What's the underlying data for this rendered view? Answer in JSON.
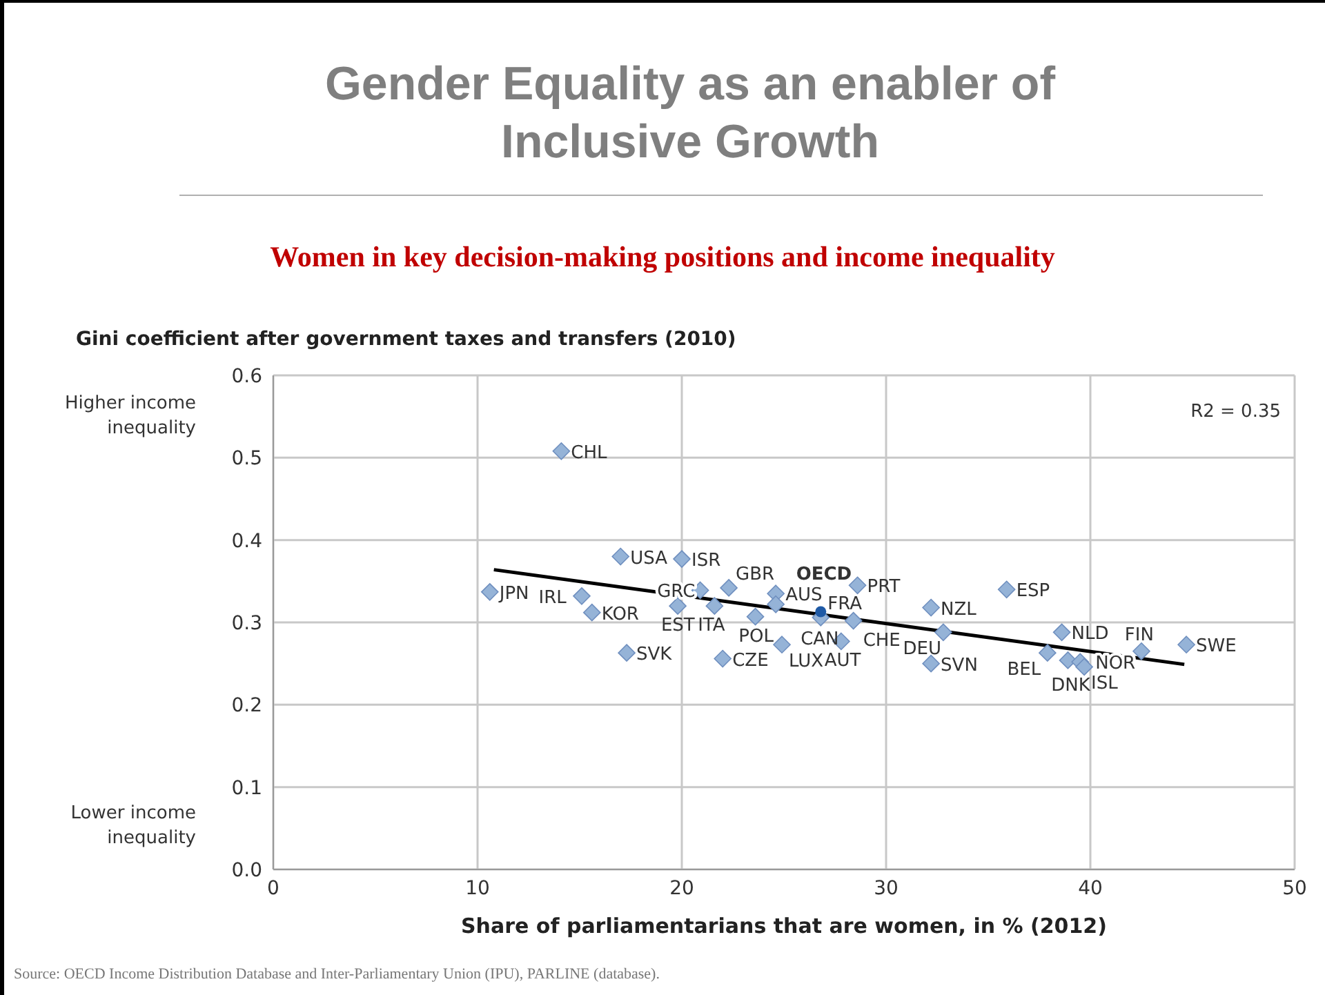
{
  "chart_data": {
    "type": "scatter",
    "title": "Gender Equality as an enabler of Inclusive Growth",
    "subtitle": "Women in key decision-making positions and income inequality",
    "ylabel": "Gini coefficient after government taxes and transfers (2010)",
    "xlabel": "Share of parliamentarians that are women, in % (2012)",
    "xlim": [
      0,
      50
    ],
    "xticks": [
      0,
      10,
      20,
      30,
      40,
      50
    ],
    "ylim": [
      0,
      0.6
    ],
    "yticks": [
      {
        "value": 0,
        "label": "0.0"
      },
      0.1,
      0.2,
      0.3,
      0.4,
      0.5,
      0.6
    ],
    "grid": true,
    "series": [
      {
        "color": "#95b3d7",
        "marker": "diamond",
        "x": [
          10.6,
          14.1,
          17.0,
          20.0,
          15.1,
          15.6,
          17.3,
          20.9,
          22.3,
          19.8,
          21.6,
          22.0,
          23.6,
          24.6,
          24.6,
          26.8,
          24.9,
          28.6,
          28.4,
          27.8,
          32.2,
          32.2,
          32.8,
          35.9,
          38.6,
          37.9,
          38.9,
          39.5,
          39.7,
          42.5,
          44.7
        ],
        "values": [
          0.337,
          0.508,
          0.38,
          0.377,
          0.332,
          0.312,
          0.263,
          0.339,
          0.342,
          0.32,
          0.32,
          0.256,
          0.307,
          0.335,
          0.322,
          0.306,
          0.273,
          0.345,
          0.302,
          0.277,
          0.318,
          0.25,
          0.288,
          0.34,
          0.288,
          0.263,
          0.254,
          0.252,
          0.246,
          0.265,
          0.273
        ]
      },
      {
        "color": "#1f5aa6",
        "marker": "circle",
        "x": [
          26.8
        ],
        "values": [
          0.313
        ]
      },
      {
        "type": "line",
        "color": "#000000",
        "marker": "none",
        "x": [
          10.8,
          44.6
        ],
        "values": [
          0.364,
          0.249
        ]
      }
    ],
    "annotations": [
      "R2 = 0.35",
      "Higher income inequality",
      "Lower income inequality",
      "Source: OECD Income Distribution Database and Inter-Parliamentary Union (IPU), PARLINE (database).",
      {
        "text": "JPN",
        "x": 10.6,
        "y": 0.337
      },
      {
        "text": "CHL",
        "x": 14.1,
        "y": 0.508
      },
      {
        "text": "USA",
        "x": 17.0,
        "y": 0.38
      },
      {
        "text": "ISR",
        "x": 20.0,
        "y": 0.377
      },
      {
        "text": "IRL",
        "x": 15.1,
        "y": 0.332
      },
      {
        "text": "KOR",
        "x": 15.6,
        "y": 0.312
      },
      {
        "text": "SVK",
        "x": 17.3,
        "y": 0.263
      },
      {
        "text": "GRC",
        "x": 20.9,
        "y": 0.339
      },
      {
        "text": "GBR",
        "x": 22.3,
        "y": 0.342
      },
      {
        "text": "EST",
        "x": 19.8,
        "y": 0.32
      },
      {
        "text": "ITA",
        "x": 21.6,
        "y": 0.32
      },
      {
        "text": "CZE",
        "x": 22.0,
        "y": 0.256
      },
      {
        "text": "POL",
        "x": 23.6,
        "y": 0.307
      },
      {
        "text": "AUS",
        "x": 24.6,
        "y": 0.335
      },
      {
        "text": "CAN",
        "x": 24.6,
        "y": 0.322
      },
      {
        "text": "FRA",
        "x": 26.8,
        "y": 0.306
      },
      {
        "text": "LUX",
        "x": 24.9,
        "y": 0.273
      },
      {
        "text": "PRT",
        "x": 28.6,
        "y": 0.345
      },
      {
        "text": "CHE",
        "x": 28.4,
        "y": 0.302
      },
      {
        "text": "AUT",
        "x": 27.8,
        "y": 0.277
      },
      {
        "text": "NZL",
        "x": 32.2,
        "y": 0.318
      },
      {
        "text": "SVN",
        "x": 32.2,
        "y": 0.25
      },
      {
        "text": "DEU",
        "x": 32.8,
        "y": 0.288
      },
      {
        "text": "ESP",
        "x": 35.9,
        "y": 0.34
      },
      {
        "text": "NLD",
        "x": 38.6,
        "y": 0.288
      },
      {
        "text": "BEL",
        "x": 37.9,
        "y": 0.263
      },
      {
        "text": "DNK",
        "x": 38.9,
        "y": 0.254
      },
      {
        "text": "NOR",
        "x": 39.5,
        "y": 0.252
      },
      {
        "text": "ISL",
        "x": 39.7,
        "y": 0.246
      },
      {
        "text": "FIN",
        "x": 42.5,
        "y": 0.265
      },
      {
        "text": "SWE",
        "x": 44.7,
        "y": 0.273
      },
      {
        "text": "OECD",
        "x": 26.8,
        "y": 0.313
      }
    ]
  }
}
